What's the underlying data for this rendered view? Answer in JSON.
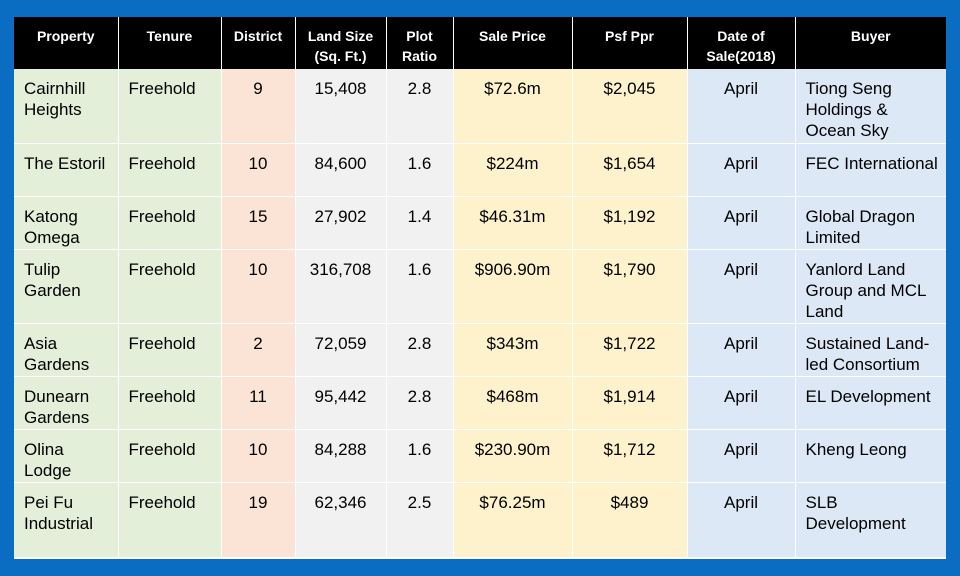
{
  "headers": [
    "Property",
    "Tenure",
    "District",
    "Land Size (Sq. Ft.)",
    "Plot Ratio",
    "Sale Price",
    "Psf Ppr",
    "Date of Sale(2018)",
    "Buyer"
  ],
  "rows": [
    {
      "property": "Cairnhill Heights",
      "tenure": "Freehold",
      "district": "9",
      "land_size": "15,408",
      "plot_ratio": "2.8",
      "sale_price": "$72.6m",
      "psf_ppr": "$2,045",
      "date": "April",
      "buyer": "Tiong Seng Holdings & Ocean Sky"
    },
    {
      "property": "The Estoril",
      "tenure": "Freehold",
      "district": "10",
      "land_size": "84,600",
      "plot_ratio": "1.6",
      "sale_price": "$224m",
      "psf_ppr": "$1,654",
      "date": "April",
      "buyer": "FEC International"
    },
    {
      "property": "Katong Omega",
      "tenure": "Freehold",
      "district": "15",
      "land_size": "27,902",
      "plot_ratio": "1.4",
      "sale_price": "$46.31m",
      "psf_ppr": "$1,192",
      "date": "April",
      "buyer": "Global Dragon Limited"
    },
    {
      "property": "Tulip Garden",
      "tenure": "Freehold",
      "district": "10",
      "land_size": "316,708",
      "plot_ratio": "1.6",
      "sale_price": "$906.90m",
      "psf_ppr": "$1,790",
      "date": "April",
      "buyer": "Yanlord Land Group and MCL Land"
    },
    {
      "property": "Asia Gardens",
      "tenure": "Freehold",
      "district": "2",
      "land_size": "72,059",
      "plot_ratio": "2.8",
      "sale_price": "$343m",
      "psf_ppr": "$1,722",
      "date": "April",
      "buyer": "Sustained Land-led Consortium"
    },
    {
      "property": "Dunearn Gardens",
      "tenure": "Freehold",
      "district": "11",
      "land_size": "95,442",
      "plot_ratio": "2.8",
      "sale_price": "$468m",
      "psf_ppr": "$1,914",
      "date": "April",
      "buyer": "EL Development"
    },
    {
      "property": "Olina Lodge",
      "tenure": "Freehold",
      "district": "10",
      "land_size": "84,288",
      "plot_ratio": "1.6",
      "sale_price": "$230.90m",
      "psf_ppr": "$1,712",
      "date": "April",
      "buyer": "Kheng Leong"
    },
    {
      "property": "Pei Fu Industrial",
      "tenure": "Freehold",
      "district": "19",
      "land_size": "62,346",
      "plot_ratio": "2.5",
      "sale_price": "$76.25m",
      "psf_ppr": "$489",
      "date": "April",
      "buyer": "SLB Development"
    }
  ],
  "colors": {
    "frame": "#0a6dc2",
    "header": "#000000",
    "green": "#e3efd9",
    "peach": "#fbe4d5",
    "gray": "#f1f1f1",
    "yellow": "#fef2cc",
    "blue": "#dce8f5"
  }
}
